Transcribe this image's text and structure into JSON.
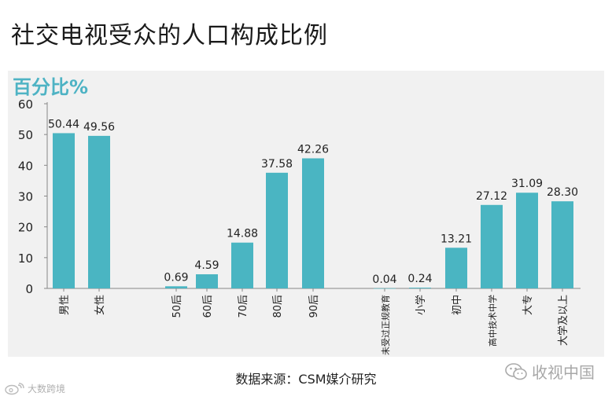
{
  "title": "社交电视受众的人口构成比例",
  "source": "数据来源：CSM媒介研究",
  "watermark_right": "收视中国",
  "watermark_left": "大数跨境",
  "icons": {
    "watermark_right": "wechat-icon",
    "watermark_left": "weibo-icon"
  },
  "colors": {
    "bar": "#4ab5c2",
    "ylabel": "#4eb3c4",
    "panel": "#f1f1f1"
  },
  "chart_data": {
    "type": "bar",
    "ylabel": "百分比%",
    "xlabel": "",
    "ylim": [
      0,
      60
    ],
    "yticks": [
      0,
      10,
      20,
      30,
      40,
      50,
      60
    ],
    "grid": false,
    "groups": [
      {
        "categories": [
          "男性",
          "女性"
        ],
        "values": [
          50.44,
          49.56
        ]
      },
      {
        "categories": [
          "50后",
          "60后",
          "70后",
          "80后",
          "90后"
        ],
        "values": [
          0.69,
          4.59,
          14.88,
          37.58,
          42.26
        ]
      },
      {
        "categories": [
          "未受过正规教育",
          "小学",
          "初中",
          "高中技术中学",
          "大专",
          "大学及以上"
        ],
        "values": [
          0.04,
          0.24,
          13.21,
          27.12,
          31.09,
          28.3
        ]
      }
    ],
    "value_labels": [
      "50.44",
      "49.56",
      "0.69",
      "4.59",
      "14.88",
      "37.58",
      "42.26",
      "0.04",
      "0.24",
      "13.21",
      "27.12",
      "31.09",
      "28.30"
    ]
  }
}
